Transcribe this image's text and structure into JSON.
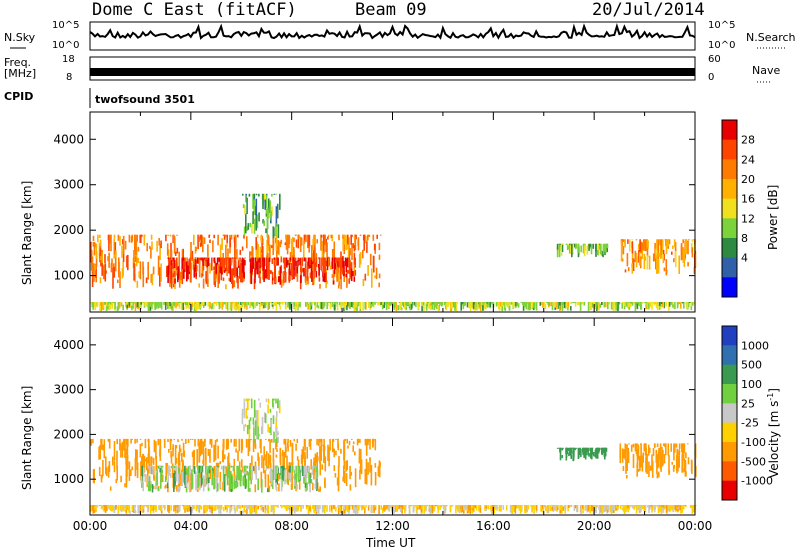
{
  "header": {
    "station": "Dome C East (fitACF)",
    "beam": "Beam 09",
    "date": "20/Jul/2014"
  },
  "nsky_panel": {
    "left_label": "N.Sky",
    "left_ticks": [
      "10^5",
      "10^0"
    ],
    "right_ticks": [
      "10^5",
      "10^0"
    ],
    "right_label": "N.Search"
  },
  "freq_panel": {
    "left_label_1": "Freq.",
    "left_label_2": "[MHz]",
    "left_ticks": [
      "18",
      "8"
    ],
    "right_ticks": [
      "60",
      "0"
    ],
    "right_label": "Nave"
  },
  "cpid_panel": {
    "label": "CPID",
    "value": "twofsound 3501"
  },
  "chart_data": [
    {
      "type": "heatmap",
      "quantity": "Power",
      "ylabel": "Slant Range [km]",
      "yticks": [
        1000,
        2000,
        3000,
        4000
      ],
      "ylim": [
        200,
        4600
      ],
      "xlim": [
        0,
        24
      ],
      "colorbar": {
        "label": "Power [dB]",
        "ticks": [
          "28",
          "24",
          "20",
          "16",
          "12",
          "8",
          "4"
        ],
        "colors": [
          "#e80000",
          "#ff4400",
          "#ff7a00",
          "#ffb000",
          "#f0e020",
          "#7cd23a",
          "#2e8a40",
          "#3060a8",
          "#0000ff"
        ]
      },
      "regions": [
        {
          "t0": 0.0,
          "t1": 11.5,
          "r0": 700,
          "r1": 1900,
          "level": 22
        },
        {
          "t0": 3.0,
          "t1": 10.5,
          "r0": 800,
          "r1": 1400,
          "level": 28
        },
        {
          "t0": 6.0,
          "t1": 7.5,
          "r0": 1800,
          "r1": 2800,
          "level": 8
        },
        {
          "t0": 18.5,
          "t1": 20.5,
          "r0": 1400,
          "r1": 1700,
          "level": 10
        },
        {
          "t0": 21.0,
          "t1": 24.0,
          "r0": 1000,
          "r1": 1800,
          "level": 20
        },
        {
          "t0": 0.0,
          "t1": 24.0,
          "r0": 220,
          "r1": 420,
          "level": 12
        }
      ]
    },
    {
      "type": "heatmap",
      "quantity": "Velocity",
      "ylabel": "Slant Range [km]",
      "xlabel": "Time UT",
      "xticks": [
        "00:00",
        "04:00",
        "08:00",
        "12:00",
        "16:00",
        "20:00",
        "00:00"
      ],
      "yticks": [
        1000,
        2000,
        3000,
        4000
      ],
      "ylim": [
        200,
        4600
      ],
      "xlim": [
        0,
        24
      ],
      "colorbar": {
        "label": "Velocity [m s-1]",
        "label_main": "Velocity [m s",
        "label_sup": "-1",
        "label_end": "]",
        "ticks": [
          "1000",
          "500",
          "100",
          "25",
          "-25",
          "-100",
          "-500",
          "-1000"
        ],
        "colors": [
          "#2040c0",
          "#3070b0",
          "#3a9a50",
          "#70d040",
          "#c8c8c8",
          "#ffd000",
          "#ff9a00",
          "#ff5a00",
          "#e80000"
        ]
      },
      "regions": [
        {
          "t0": 0.0,
          "t1": 11.5,
          "r0": 700,
          "r1": 1900,
          "level": -250
        },
        {
          "t0": 2.0,
          "t1": 9.0,
          "r0": 700,
          "r1": 1300,
          "level": 60
        },
        {
          "t0": 6.0,
          "t1": 7.5,
          "r0": 1800,
          "r1": 2800,
          "level": 0
        },
        {
          "t0": 18.5,
          "t1": 20.5,
          "r0": 1400,
          "r1": 1700,
          "level": 300
        },
        {
          "t0": 21.0,
          "t1": 24.0,
          "r0": 1000,
          "r1": 1800,
          "level": -250
        },
        {
          "t0": 0.0,
          "t1": 24.0,
          "r0": 220,
          "r1": 420,
          "level": -60
        }
      ]
    }
  ]
}
